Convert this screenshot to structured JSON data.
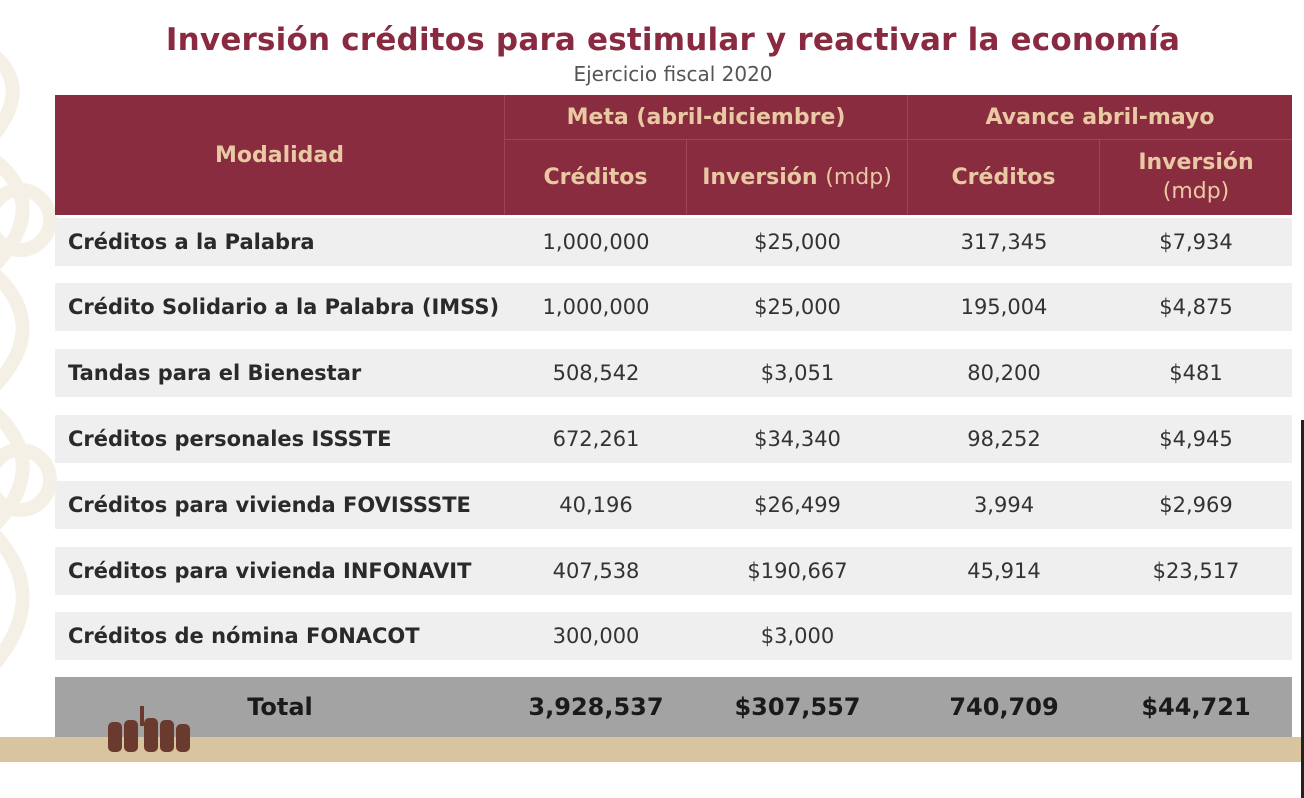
{
  "title": "Inversión créditos para estimular y reactivar la economía",
  "subtitle": "Ejercicio fiscal 2020",
  "colors": {
    "header_bg": "#892c40",
    "header_text": "#e9c9a3",
    "row_bg": "#efefef",
    "total_bg": "#a3a3a3",
    "band": "#d8c49f"
  },
  "table": {
    "header": {
      "modalidad": "Modalidad",
      "group_meta": "Meta (abril-diciembre)",
      "group_avance": "Avance abril-mayo",
      "creditos": "Créditos",
      "inversion": "Inversión",
      "mdp": "(mdp)"
    },
    "rows": [
      {
        "modalidad": "Créditos a la Palabra",
        "meta_creditos": "1,000,000",
        "meta_inversion": "$25,000",
        "avance_creditos": "317,345",
        "avance_inversion": "$7,934"
      },
      {
        "modalidad": "Crédito Solidario a la Palabra (IMSS)",
        "meta_creditos": "1,000,000",
        "meta_inversion": "$25,000",
        "avance_creditos": "195,004",
        "avance_inversion": "$4,875"
      },
      {
        "modalidad": "Tandas para el Bienestar",
        "meta_creditos": "508,542",
        "meta_inversion": "$3,051",
        "avance_creditos": "80,200",
        "avance_inversion": "$481"
      },
      {
        "modalidad": "Créditos personales ISSSTE",
        "meta_creditos": "672,261",
        "meta_inversion": "$34,340",
        "avance_creditos": "98,252",
        "avance_inversion": "$4,945"
      },
      {
        "modalidad": "Créditos para vivienda FOVISSSTE",
        "meta_creditos": "40,196",
        "meta_inversion": "$26,499",
        "avance_creditos": "3,994",
        "avance_inversion": "$2,969"
      },
      {
        "modalidad": "Créditos para vivienda INFONAVIT",
        "meta_creditos": "407,538",
        "meta_inversion": "$190,667",
        "avance_creditos": "45,914",
        "avance_inversion": "$23,517"
      },
      {
        "modalidad": "Créditos de nómina FONACOT",
        "meta_creditos": "300,000",
        "meta_inversion": "$3,000",
        "avance_creditos": "",
        "avance_inversion": ""
      }
    ],
    "total": {
      "modalidad": "Total",
      "meta_creditos": "3,928,537",
      "meta_inversion": "$307,557",
      "avance_creditos": "740,709",
      "avance_inversion": "$44,721"
    }
  }
}
